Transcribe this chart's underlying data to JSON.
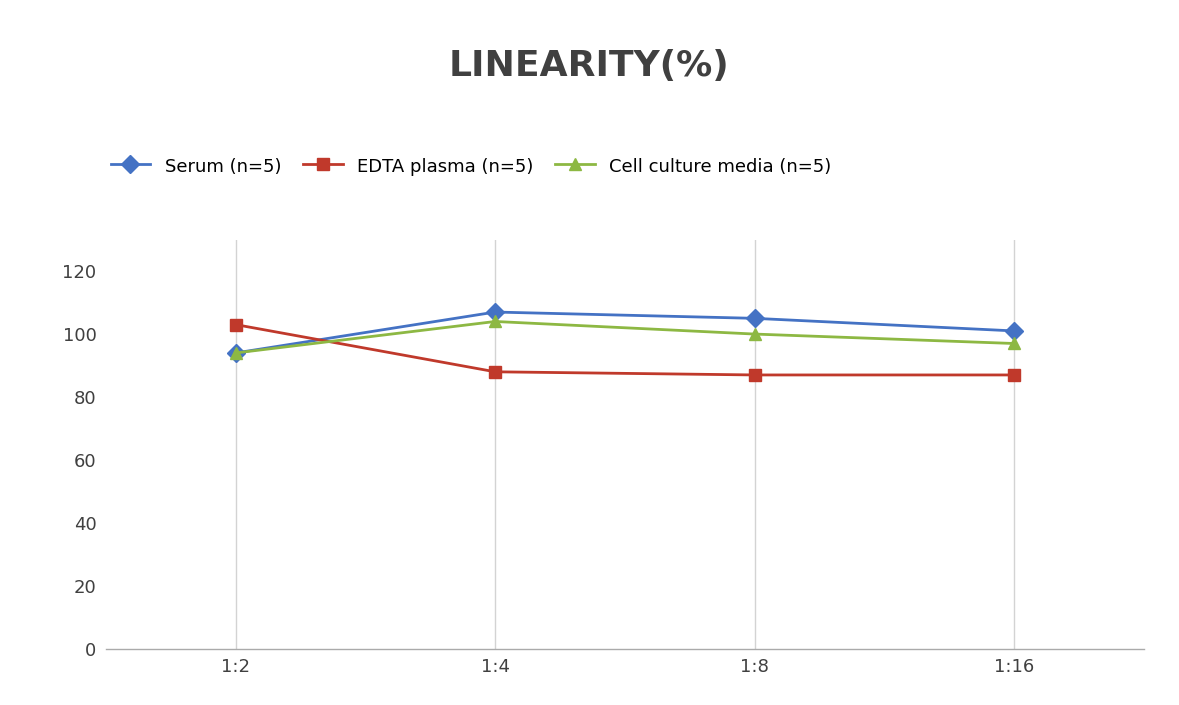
{
  "title": "LINEARITY(%)",
  "x_labels": [
    "1:2",
    "1:4",
    "1:8",
    "1:16"
  ],
  "x_positions": [
    0,
    1,
    2,
    3
  ],
  "series": [
    {
      "label": "Serum (n=5)",
      "values": [
        94,
        107,
        105,
        101
      ],
      "color": "#4472C4",
      "marker": "D",
      "linewidth": 2.0
    },
    {
      "label": "EDTA plasma (n=5)",
      "values": [
        103,
        88,
        87,
        87
      ],
      "color": "#C0392B",
      "marker": "s",
      "linewidth": 2.0
    },
    {
      "label": "Cell culture media (n=5)",
      "values": [
        94,
        104,
        100,
        97
      ],
      "color": "#8DB843",
      "marker": "^",
      "linewidth": 2.0
    }
  ],
  "ylim": [
    0,
    130
  ],
  "yticks": [
    0,
    20,
    40,
    60,
    80,
    100,
    120
  ],
  "grid_color": "#D3D3D3",
  "background_color": "#FFFFFF",
  "title_fontsize": 26,
  "title_fontweight": "bold",
  "title_color": "#404040",
  "legend_fontsize": 13,
  "tick_fontsize": 13,
  "marker_size": 9
}
